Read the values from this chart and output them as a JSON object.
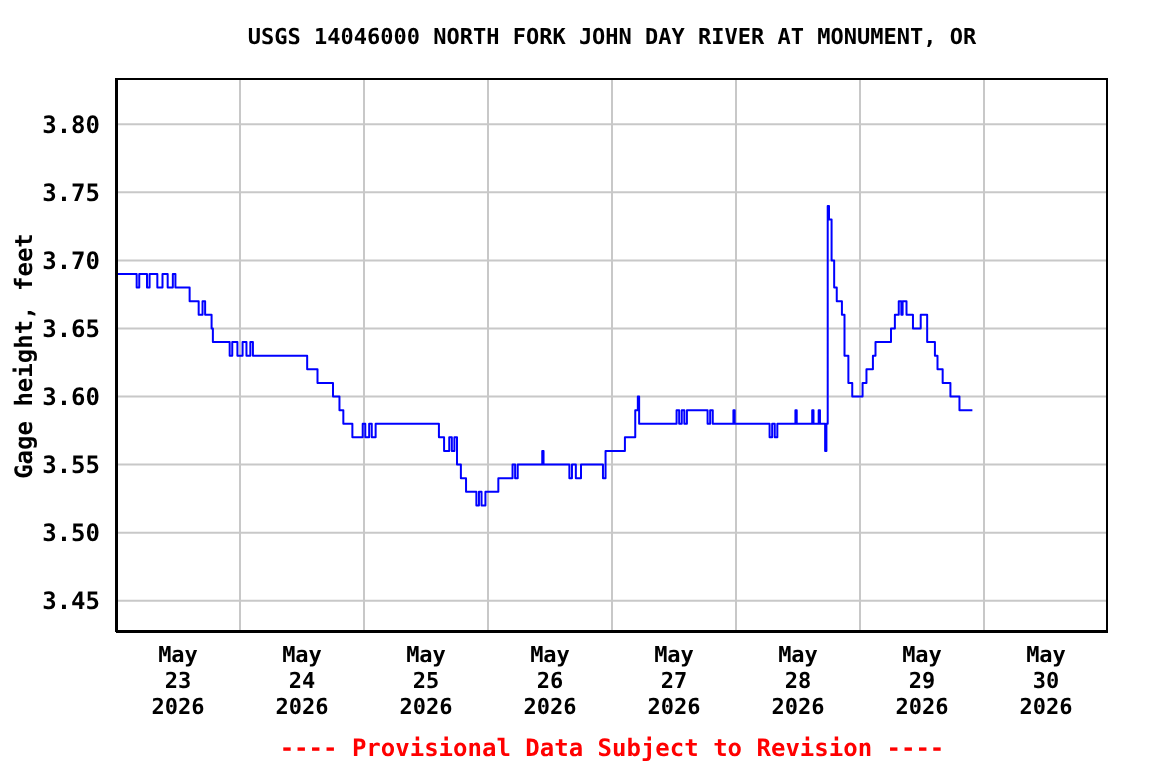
{
  "chart_data": {
    "type": "step",
    "title": "USGS 14046000 NORTH FORK JOHN DAY RIVER AT MONUMENT, OR",
    "ylabel": "Gage height, feet",
    "annotations": [
      "---- Provisional Data Subject to Revision ----"
    ],
    "x": [
      "2026-05-23T00:00",
      "2026-05-23T04:00",
      "2026-05-23T04:30",
      "2026-05-23T06:00",
      "2026-05-23T06:30",
      "2026-05-23T08:00",
      "2026-05-23T09:00",
      "2026-05-23T10:00",
      "2026-05-23T11:00",
      "2026-05-23T11:30",
      "2026-05-23T14:15",
      "2026-05-23T16:00",
      "2026-05-23T16:45",
      "2026-05-23T17:15",
      "2026-05-23T18:30",
      "2026-05-23T18:45",
      "2026-05-23T22:00",
      "2026-05-23T22:30",
      "2026-05-23T23:30",
      "2026-05-24T00:30",
      "2026-05-24T01:15",
      "2026-05-24T02:00",
      "2026-05-24T02:30",
      "2026-05-24T13:00",
      "2026-05-24T15:00",
      "2026-05-24T18:00",
      "2026-05-24T19:15",
      "2026-05-24T20:00",
      "2026-05-24T21:45",
      "2026-05-24T23:45",
      "2026-05-25T00:15",
      "2026-05-25T01:00",
      "2026-05-25T01:30",
      "2026-05-25T02:15",
      "2026-05-25T14:30",
      "2026-05-25T15:30",
      "2026-05-25T16:30",
      "2026-05-25T17:00",
      "2026-05-25T17:30",
      "2026-05-25T18:00",
      "2026-05-25T18:45",
      "2026-05-25T19:45",
      "2026-05-25T21:45",
      "2026-05-25T22:15",
      "2026-05-25T22:45",
      "2026-05-25T23:30",
      "2026-05-26T02:00",
      "2026-05-26T04:45",
      "2026-05-26T05:15",
      "2026-05-26T05:45",
      "2026-05-26T10:30",
      "2026-05-26T10:45",
      "2026-05-26T15:45",
      "2026-05-26T16:15",
      "2026-05-26T17:00",
      "2026-05-26T18:00",
      "2026-05-26T22:15",
      "2026-05-26T22:45",
      "2026-05-27T02:30",
      "2026-05-27T04:30",
      "2026-05-27T05:00",
      "2026-05-27T05:15",
      "2026-05-27T12:30",
      "2026-05-27T13:00",
      "2026-05-27T13:30",
      "2026-05-27T14:00",
      "2026-05-27T14:30",
      "2026-05-27T18:30",
      "2026-05-27T19:00",
      "2026-05-27T19:30",
      "2026-05-27T23:30",
      "2026-05-27T23:45",
      "2026-05-28T06:30",
      "2026-05-28T07:00",
      "2026-05-28T07:30",
      "2026-05-28T08:00",
      "2026-05-28T11:30",
      "2026-05-28T11:45",
      "2026-05-28T14:45",
      "2026-05-28T15:00",
      "2026-05-28T16:00",
      "2026-05-28T16:15",
      "2026-05-28T17:15",
      "2026-05-28T17:30",
      "2026-05-28T17:45",
      "2026-05-28T18:00",
      "2026-05-28T18:30",
      "2026-05-28T19:00",
      "2026-05-28T19:30",
      "2026-05-28T20:30",
      "2026-05-28T21:00",
      "2026-05-28T21:45",
      "2026-05-28T22:30",
      "2026-05-29T00:30",
      "2026-05-29T01:15",
      "2026-05-29T02:30",
      "2026-05-29T03:00",
      "2026-05-29T06:00",
      "2026-05-29T06:45",
      "2026-05-29T07:30",
      "2026-05-29T08:00",
      "2026-05-29T08:15",
      "2026-05-29T09:00",
      "2026-05-29T10:15",
      "2026-05-29T11:45",
      "2026-05-29T13:00",
      "2026-05-29T14:30",
      "2026-05-29T15:00",
      "2026-05-29T16:00",
      "2026-05-29T17:30",
      "2026-05-29T19:15",
      "2026-05-29T21:45"
    ],
    "series": [
      {
        "color": "#0000ff",
        "values": [
          3.69,
          3.68,
          3.69,
          3.68,
          3.69,
          3.68,
          3.69,
          3.68,
          3.69,
          3.68,
          3.67,
          3.66,
          3.67,
          3.66,
          3.65,
          3.64,
          3.63,
          3.64,
          3.63,
          3.64,
          3.63,
          3.64,
          3.63,
          3.62,
          3.61,
          3.6,
          3.59,
          3.58,
          3.57,
          3.58,
          3.57,
          3.58,
          3.57,
          3.58,
          3.57,
          3.56,
          3.57,
          3.56,
          3.57,
          3.55,
          3.54,
          3.53,
          3.52,
          3.53,
          3.52,
          3.53,
          3.54,
          3.55,
          3.54,
          3.55,
          3.56,
          3.55,
          3.54,
          3.55,
          3.54,
          3.55,
          3.54,
          3.56,
          3.57,
          3.59,
          3.6,
          3.58,
          3.59,
          3.58,
          3.59,
          3.58,
          3.59,
          3.58,
          3.59,
          3.58,
          3.59,
          3.58,
          3.57,
          3.58,
          3.57,
          3.58,
          3.59,
          3.58,
          3.59,
          3.58,
          3.59,
          3.58,
          3.56,
          3.58,
          3.74,
          3.73,
          3.7,
          3.68,
          3.67,
          3.66,
          3.63,
          3.61,
          3.6,
          3.61,
          3.62,
          3.63,
          3.64,
          3.65,
          3.66,
          3.67,
          3.66,
          3.67,
          3.66,
          3.65,
          3.66,
          3.64,
          3.63,
          3.62,
          3.61,
          3.6,
          3.59,
          3.59
        ]
      }
    ],
    "xlim": [
      "2026-05-23T00:00",
      "2026-05-31T00:00"
    ],
    "xticks": [
      {
        "value": "2026-05-23T12:00",
        "label": "May\n23\n2026"
      },
      {
        "value": "2026-05-24T00:00",
        "label": null
      },
      {
        "value": "2026-05-24T12:00",
        "label": "May\n24\n2026"
      },
      {
        "value": "2026-05-25T00:00",
        "label": null
      },
      {
        "value": "2026-05-25T12:00",
        "label": "May\n25\n2026"
      },
      {
        "value": "2026-05-26T00:00",
        "label": null
      },
      {
        "value": "2026-05-26T12:00",
        "label": "May\n26\n2026"
      },
      {
        "value": "2026-05-27T00:00",
        "label": null
      },
      {
        "value": "2026-05-27T12:00",
        "label": "May\n27\n2026"
      },
      {
        "value": "2026-05-28T00:00",
        "label": null
      },
      {
        "value": "2026-05-28T12:00",
        "label": "May\n28\n2026"
      },
      {
        "value": "2026-05-29T00:00",
        "label": null
      },
      {
        "value": "2026-05-29T12:00",
        "label": "May\n29\n2026"
      },
      {
        "value": "2026-05-30T00:00",
        "label": null
      },
      {
        "value": "2026-05-30T12:00",
        "label": "May\n30\n2026"
      }
    ],
    "ylim": [
      3.427,
      3.834
    ],
    "yticks": [
      {
        "value": 3.45,
        "label": "3.45"
      },
      {
        "value": 3.5,
        "label": "3.50"
      },
      {
        "value": 3.55,
        "label": "3.55"
      },
      {
        "value": 3.6,
        "label": "3.60"
      },
      {
        "value": 3.65,
        "label": "3.65"
      },
      {
        "value": 3.7,
        "label": "3.70"
      },
      {
        "value": 3.75,
        "label": "3.75"
      },
      {
        "value": 3.8,
        "label": "3.80"
      }
    ],
    "grid": true,
    "marker": "none"
  }
}
